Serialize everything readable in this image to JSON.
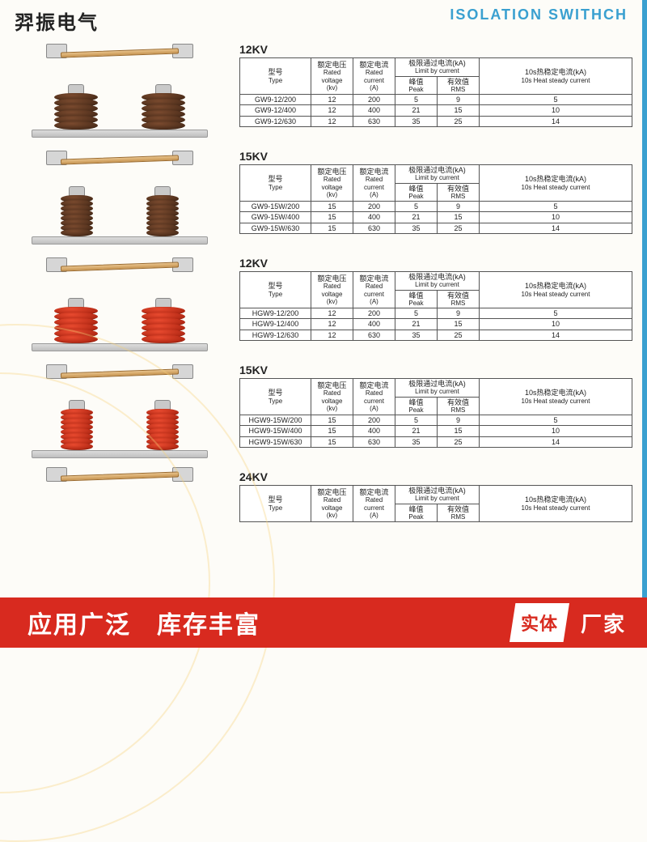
{
  "header": {
    "cn_title": "羿振电气",
    "en_title": "ISOLATION SWITHCH"
  },
  "colors": {
    "accent": "#3aa0d0",
    "banner": "#d82a1f",
    "insulator_brown": "#4a2d18",
    "insulator_red": "#c8301a"
  },
  "table_header": {
    "model": "型号",
    "model_en": "Type",
    "voltage": "额定电压",
    "voltage_en": "Rated voltage",
    "voltage_unit": "(kv)",
    "current": "额定电流",
    "current_en": "Rated current",
    "current_unit": "(A)",
    "limit": "极限通过电流(kA)",
    "limit_en": "Limit by current",
    "peak": "峰值",
    "peak_en": "Peak",
    "rms": "有效值",
    "rms_en": "RMS",
    "heat": "10s热稳定电流(kA)",
    "heat_en": "10s Heat steady current"
  },
  "groups": [
    {
      "title": "12KV",
      "insulator_color": "brown",
      "slim": false,
      "rows": [
        {
          "model": "GW9-12/200",
          "kv": "12",
          "a": "200",
          "peak": "5",
          "rms": "9",
          "heat": "5"
        },
        {
          "model": "GW9-12/400",
          "kv": "12",
          "a": "400",
          "peak": "21",
          "rms": "15",
          "heat": "10"
        },
        {
          "model": "GW9-12/630",
          "kv": "12",
          "a": "630",
          "peak": "35",
          "rms": "25",
          "heat": "14"
        }
      ]
    },
    {
      "title": "15KV",
      "insulator_color": "brown",
      "slim": true,
      "rows": [
        {
          "model": "GW9-15W/200",
          "kv": "15",
          "a": "200",
          "peak": "5",
          "rms": "9",
          "heat": "5"
        },
        {
          "model": "GW9-15W/400",
          "kv": "15",
          "a": "400",
          "peak": "21",
          "rms": "15",
          "heat": "10"
        },
        {
          "model": "GW9-15W/630",
          "kv": "15",
          "a": "630",
          "peak": "35",
          "rms": "25",
          "heat": "14"
        }
      ]
    },
    {
      "title": "12KV",
      "insulator_color": "red",
      "slim": false,
      "rows": [
        {
          "model": "HGW9-12/200",
          "kv": "12",
          "a": "200",
          "peak": "5",
          "rms": "9",
          "heat": "5"
        },
        {
          "model": "HGW9-12/400",
          "kv": "12",
          "a": "400",
          "peak": "21",
          "rms": "15",
          "heat": "10"
        },
        {
          "model": "HGW9-12/630",
          "kv": "12",
          "a": "630",
          "peak": "35",
          "rms": "25",
          "heat": "14"
        }
      ]
    },
    {
      "title": "15KV",
      "insulator_color": "red",
      "slim": true,
      "rows": [
        {
          "model": "HGW9-15W/200",
          "kv": "15",
          "a": "200",
          "peak": "5",
          "rms": "9",
          "heat": "5"
        },
        {
          "model": "HGW9-15W/400",
          "kv": "15",
          "a": "400",
          "peak": "21",
          "rms": "15",
          "heat": "10"
        },
        {
          "model": "HGW9-15W/630",
          "kv": "15",
          "a": "630",
          "peak": "35",
          "rms": "25",
          "heat": "14"
        }
      ]
    }
  ],
  "partial_group_title": "24KV",
  "footer": {
    "left": "应用广泛　库存丰富",
    "badge": "实体",
    "badge_sub": "厂家"
  }
}
